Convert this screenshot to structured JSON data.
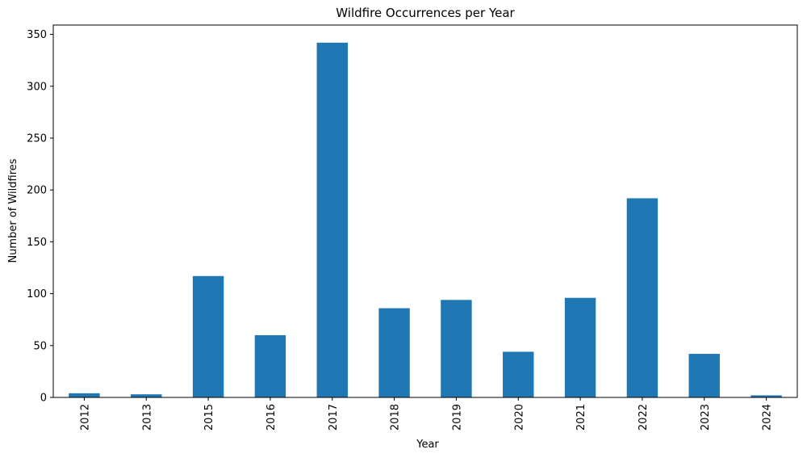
{
  "chart_data": {
    "type": "bar",
    "title": "Wildfire Occurrences per Year",
    "xlabel": "Year",
    "ylabel": "Number of Wildfires",
    "categories": [
      "2012",
      "2013",
      "2015",
      "2016",
      "2017",
      "2018",
      "2019",
      "2020",
      "2021",
      "2022",
      "2023",
      "2024"
    ],
    "values": [
      4,
      3,
      117,
      60,
      342,
      86,
      94,
      44,
      96,
      192,
      42,
      2
    ],
    "ylim": [
      0,
      359
    ],
    "yticks": [
      0,
      50,
      100,
      150,
      200,
      250,
      300,
      350
    ],
    "bar_color": "#1f77b4",
    "grid": false,
    "legend": "none"
  }
}
